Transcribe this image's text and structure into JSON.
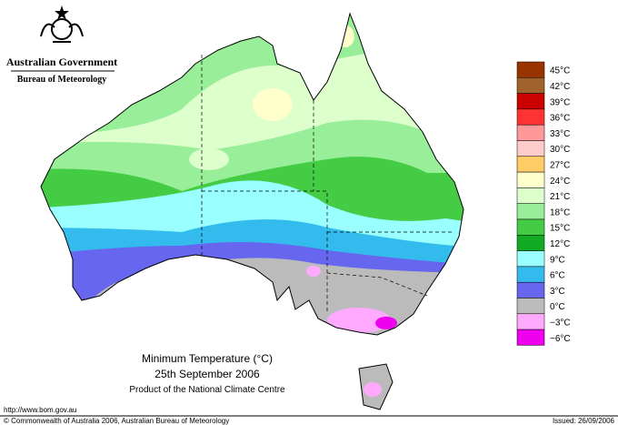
{
  "header": {
    "agency": "Australian Government",
    "bureau": "Bureau of Meteorology"
  },
  "map": {
    "title": "Minimum Temperature (°C)",
    "date": "25th September 2006",
    "product": "Product of the National Climate Centre"
  },
  "legend": [
    {
      "label": "45°C",
      "color": "#993300"
    },
    {
      "label": "42°C",
      "color": "#a0622d"
    },
    {
      "label": "39°C",
      "color": "#cc0000"
    },
    {
      "label": "36°C",
      "color": "#ff3333"
    },
    {
      "label": "33°C",
      "color": "#ff9999"
    },
    {
      "label": "30°C",
      "color": "#ffcccc"
    },
    {
      "label": "27°C",
      "color": "#ffcc66"
    },
    {
      "label": "24°C",
      "color": "#ffffcc"
    },
    {
      "label": "21°C",
      "color": "#ddffcc"
    },
    {
      "label": "18°C",
      "color": "#99ee99"
    },
    {
      "label": "15°C",
      "color": "#44cc44"
    },
    {
      "label": "12°C",
      "color": "#11aa22"
    },
    {
      "label": "9°C",
      "color": "#99ffff"
    },
    {
      "label": "6°C",
      "color": "#33bbee"
    },
    {
      "label": "3°C",
      "color": "#6666ee"
    },
    {
      "label": "0°C",
      "color": "#bbbbbb"
    },
    {
      "label": "−3°C",
      "color": "#ffaaff"
    },
    {
      "label": "−6°C",
      "color": "#ee00ee"
    }
  ],
  "footer": {
    "url": "http://www.bom.gov.au",
    "copyright": "© Commonwealth of Australia 2006, Australian Bureau of Meteorology",
    "issued": "Issued: 26/09/2006"
  }
}
